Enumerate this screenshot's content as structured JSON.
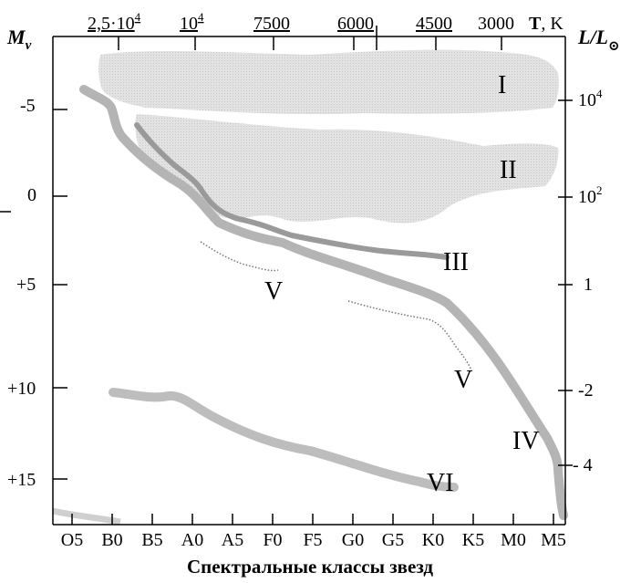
{
  "diagram": {
    "left_axis": {
      "title": "M",
      "title_sub": "v",
      "ticks": [
        "-5",
        "0",
        "+5",
        "+10",
        "+15"
      ]
    },
    "right_axis": {
      "title": "L/L",
      "title_sub": "⊙",
      "ticks": [
        {
          "base": "10",
          "sup": "4"
        },
        {
          "base": "10",
          "sup": "2"
        },
        {
          "base": "1",
          "sup": ""
        },
        {
          "base": "-2",
          "sup": ""
        },
        {
          "base": "- 4",
          "sup": ""
        }
      ]
    },
    "top_axis": {
      "ticks": [
        {
          "base": "2,5·10",
          "sup": "4"
        },
        {
          "base": "10",
          "sup": "4"
        },
        {
          "base": "7500",
          "sup": ""
        },
        {
          "base": "6000",
          "sup": ""
        },
        {
          "base": "4500",
          "sup": ""
        },
        {
          "base": "3000",
          "sup": ""
        }
      ],
      "title": "T",
      "unit": ", K"
    },
    "bottom_axis": {
      "ticks": [
        "O5",
        "B0",
        "B5",
        "A0",
        "A5",
        "F0",
        "F5",
        "G0",
        "G5",
        "K0",
        "K5",
        "M0",
        "M5"
      ],
      "label": "Спектральные классы звезд"
    },
    "luminosity_classes": [
      "I",
      "II",
      "III",
      "V",
      "V",
      "IV",
      "VI"
    ],
    "colors": {
      "band_fill": "#dadada",
      "sequence": "#b4b4b4",
      "giant_branch": "#9a9a9a",
      "dotted": "#777777"
    }
  }
}
